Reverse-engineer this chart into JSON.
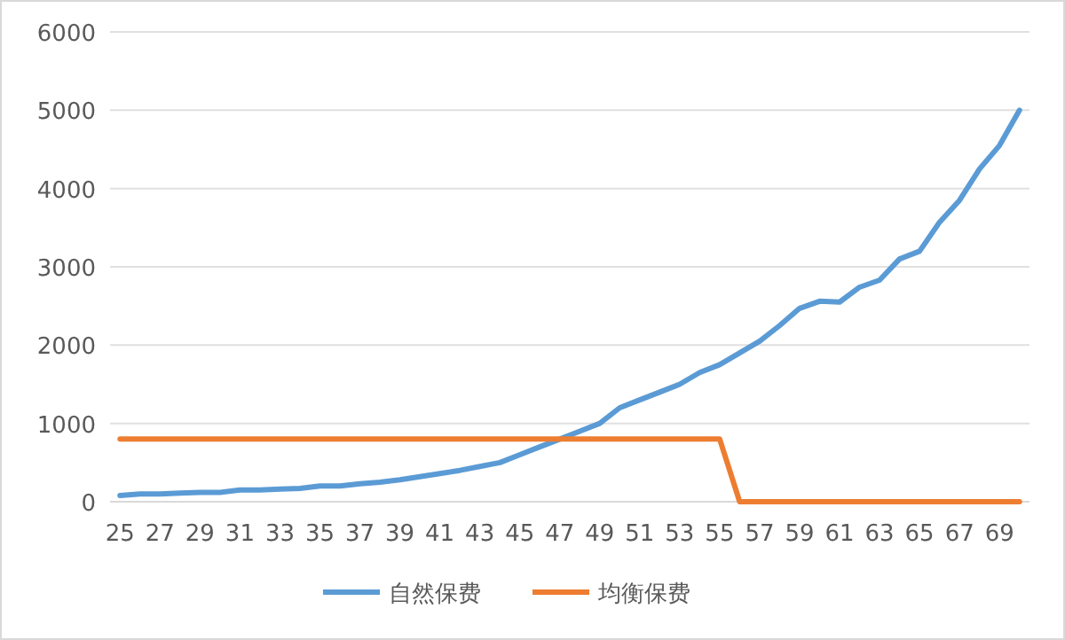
{
  "chart_data": {
    "type": "line",
    "categories": [
      "25",
      null,
      "27",
      null,
      "29",
      null,
      "31",
      null,
      "33",
      null,
      "35",
      null,
      "37",
      null,
      "39",
      null,
      "41",
      null,
      "43",
      null,
      "45",
      null,
      "47",
      null,
      "49",
      null,
      "51",
      null,
      "53",
      null,
      "55",
      null,
      "57",
      null,
      "59",
      null,
      "61",
      null,
      "63",
      null,
      "65",
      null,
      "67",
      null,
      "69",
      null
    ],
    "series": [
      {
        "name": "自然保费",
        "color": "#5b9bd5",
        "values": [
          80,
          100,
          100,
          110,
          120,
          120,
          150,
          150,
          160,
          170,
          200,
          200,
          230,
          250,
          280,
          320,
          360,
          400,
          450,
          500,
          600,
          700,
          800,
          900,
          1000,
          1200,
          1300,
          1400,
          1500,
          1650,
          1750,
          1900,
          2050,
          2250,
          2470,
          2560,
          2550,
          2740,
          2830,
          3100,
          3200,
          3570,
          3850,
          4250,
          4550,
          5000
        ]
      },
      {
        "name": "均衡保费",
        "color": "#ed7d31",
        "values": [
          800,
          800,
          800,
          800,
          800,
          800,
          800,
          800,
          800,
          800,
          800,
          800,
          800,
          800,
          800,
          800,
          800,
          800,
          800,
          800,
          800,
          800,
          800,
          800,
          800,
          800,
          800,
          800,
          800,
          800,
          800,
          0,
          0,
          0,
          0,
          0,
          0,
          0,
          0,
          0,
          0,
          0,
          0,
          0,
          0,
          0
        ]
      }
    ],
    "ylim": [
      0,
      6000
    ],
    "yticks": [
      0,
      1000,
      2000,
      3000,
      4000,
      5000,
      6000
    ],
    "grid": "y",
    "legend": "bottom",
    "marker": "none",
    "line_style": "solid"
  }
}
